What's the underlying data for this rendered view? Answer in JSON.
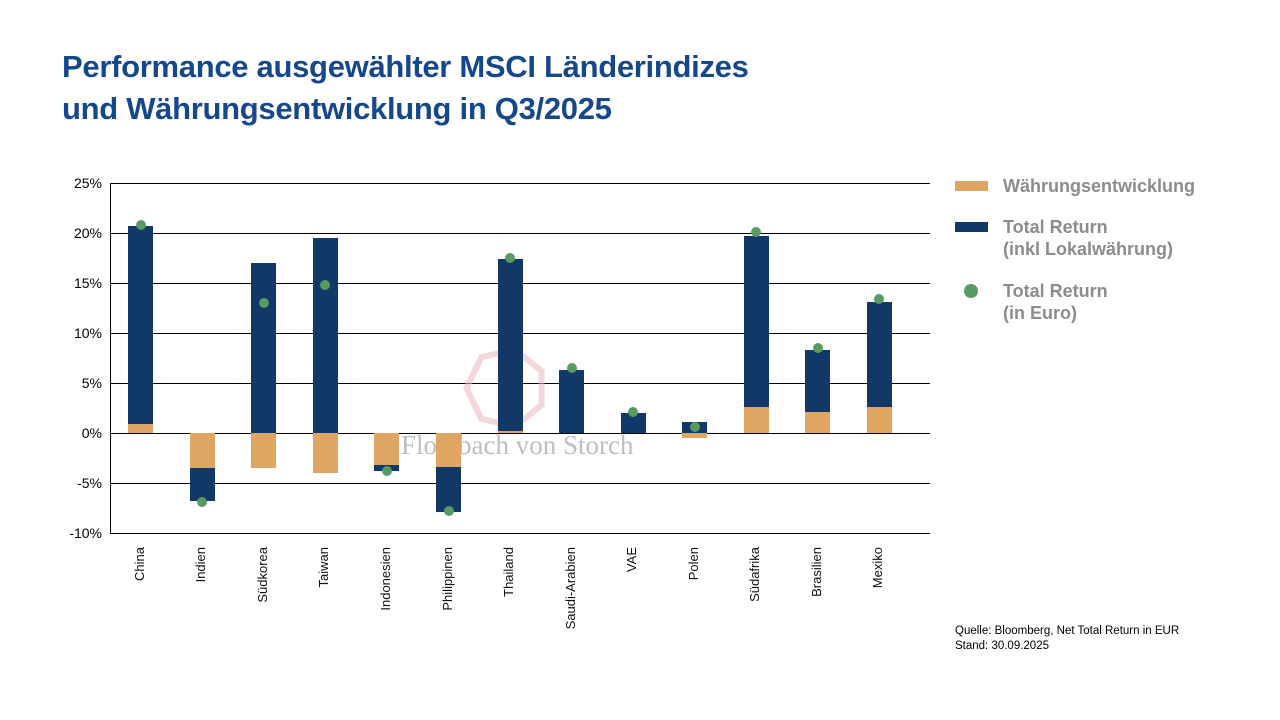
{
  "title": {
    "line1": "Performance ausgewählter MSCI Länderindizes",
    "line2": "und Währungsentwicklung in Q3/2025"
  },
  "legend": {
    "items": [
      {
        "label": "Währungsentwicklung",
        "label2": "",
        "color": "#dfa562",
        "marker": "bar"
      },
      {
        "label": "Total Return",
        "label2": "(inkl Lokalwährung)",
        "color": "#113866",
        "marker": "bar"
      },
      {
        "label": "Total Return",
        "label2": "(in Euro)",
        "color": "#579b63",
        "marker": "dot"
      }
    ]
  },
  "watermark": {
    "text": "Flossbach von Storch"
  },
  "source": {
    "line1": "Quelle: Bloomberg, Net Total Return in EUR",
    "line2": "Stand: 30.09.2025"
  },
  "colors": {
    "currency": "#dfa562",
    "total_return_local": "#113866",
    "total_return_euro": "#579b63",
    "title": "#15488a",
    "legend_text": "#8c8c8c"
  },
  "chart_data": {
    "type": "bar",
    "stacked": true,
    "title": "Performance ausgewählter MSCI Länderindizes und Währungsentwicklung in Q3/2025",
    "categories": [
      "China",
      "Indien",
      "Südkorea",
      "Taiwan",
      "Indonesien",
      "Philippinen",
      "Thailand",
      "Saudi-Arabien",
      "VAE",
      "Polen",
      "Südafrika",
      "Brasilien",
      "Mexiko"
    ],
    "series": [
      {
        "name": "Währungsentwicklung",
        "type": "bar",
        "color": "#dfa562",
        "values": [
          0.9,
          -3.5,
          -3.5,
          -4.0,
          -3.2,
          -3.4,
          0.2,
          0.0,
          0.0,
          -0.5,
          2.6,
          2.1,
          2.6
        ]
      },
      {
        "name": "Total Return (inkl Lokalwährung)",
        "type": "bar",
        "color": "#113866",
        "values": [
          19.8,
          -3.3,
          17.0,
          19.5,
          -0.6,
          -4.5,
          17.2,
          6.3,
          2.0,
          1.1,
          17.1,
          6.2,
          10.5
        ]
      },
      {
        "name": "Total Return (in Euro)",
        "type": "scatter",
        "color": "#579b63",
        "values": [
          20.8,
          -6.9,
          13.0,
          14.8,
          -3.8,
          -7.8,
          17.5,
          6.5,
          2.1,
          0.6,
          20.1,
          8.5,
          13.4
        ]
      }
    ],
    "ylim": [
      -10,
      25
    ],
    "yticks": [
      25,
      20,
      15,
      10,
      5,
      0,
      -5,
      -10
    ],
    "ytick_suffix": "%",
    "grid": true,
    "legend_position": "right"
  }
}
